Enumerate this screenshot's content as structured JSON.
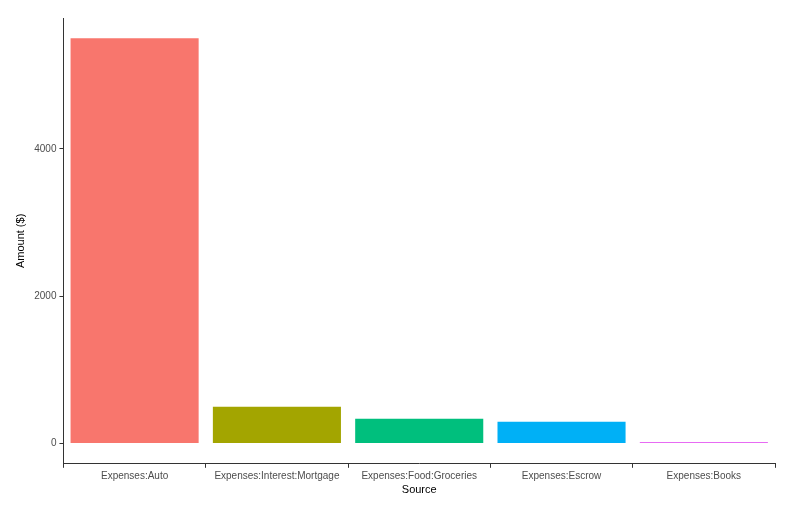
{
  "chart_data": {
    "type": "bar",
    "x_label": "Source",
    "y_label": "Amount ($)",
    "categories": [
      "Expenses:Auto",
      "Expenses:Interest:Mortgage",
      "Expenses:Food:Groceries",
      "Expenses:Escrow",
      "Expenses:Books"
    ],
    "values": [
      5500,
      500,
      335,
      295,
      20
    ],
    "colors": [
      "#F8766D",
      "#A3A500",
      "#00BF7D",
      "#00B0F6",
      "#E76BF3"
    ],
    "ylim": [
      -275,
      5775
    ],
    "yticks": [
      0,
      2000,
      4000
    ],
    "grid": false
  }
}
